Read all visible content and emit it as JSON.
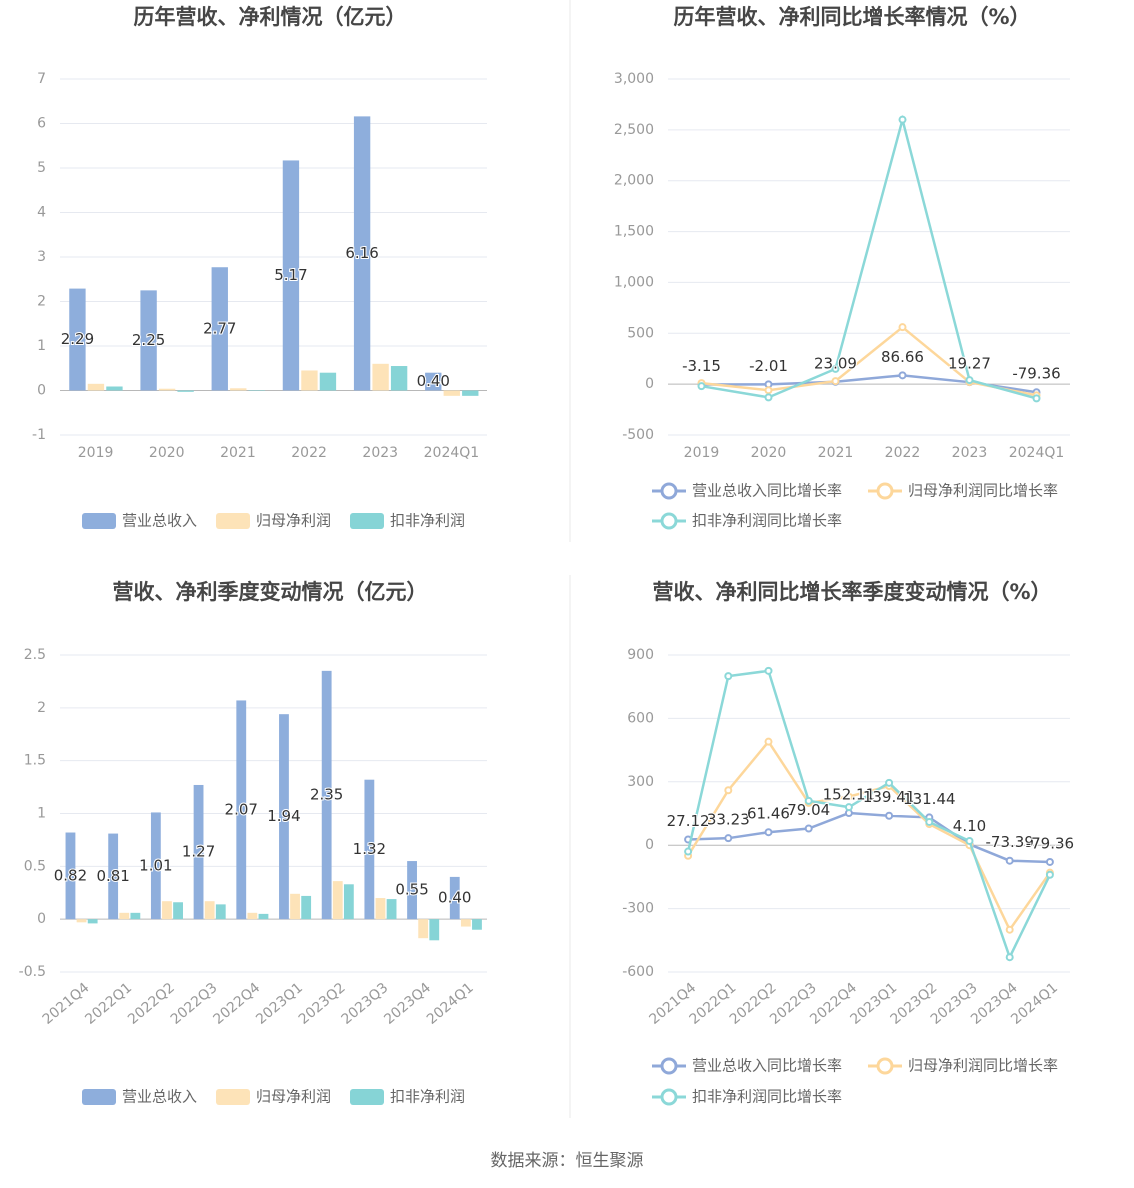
{
  "chart_data": [
    {
      "type": "bar",
      "title": "历年营收、净利情况（亿元）",
      "categories": [
        "2019",
        "2020",
        "2021",
        "2022",
        "2023",
        "2024Q1"
      ],
      "series": [
        {
          "name": "营业总收入",
          "color": "#8eaedc",
          "values": [
            2.29,
            2.25,
            2.77,
            5.17,
            6.16,
            0.4
          ],
          "value_labels": [
            "2.29",
            "2.25",
            "2.77",
            "5.17",
            "6.16",
            "0.40"
          ]
        },
        {
          "name": "归母净利润",
          "color": "#fde3b8",
          "values": [
            0.15,
            0.04,
            0.05,
            0.45,
            0.6,
            -0.12
          ]
        },
        {
          "name": "扣非净利润",
          "color": "#86d4d6",
          "values": [
            0.09,
            -0.03,
            0.01,
            0.4,
            0.55,
            -0.12
          ]
        }
      ],
      "ylim": [
        -1,
        7
      ],
      "yticks": [
        -1,
        0,
        1,
        2,
        3,
        4,
        5,
        6,
        7
      ],
      "grid": true
    },
    {
      "type": "line",
      "title": "历年营收、净利同比增长率情况（%）",
      "categories": [
        "2019",
        "2020",
        "2021",
        "2022",
        "2023",
        "2024Q1"
      ],
      "series": [
        {
          "name": "营业总收入同比增长率",
          "color": "#8fa8d9",
          "values": [
            -3.15,
            -2.01,
            23.09,
            86.66,
            19.27,
            -79.36
          ],
          "value_labels": [
            "-3.15",
            "-2.01",
            "23.09",
            "86.66",
            "19.27",
            "-79.36"
          ]
        },
        {
          "name": "归母净利润同比增长率",
          "color": "#fdd79b",
          "values": [
            10,
            -60,
            30,
            560,
            20,
            -110
          ]
        },
        {
          "name": "扣非净利润同比增长率",
          "color": "#8bd8d8",
          "values": [
            -20,
            -130,
            150,
            2600,
            40,
            -140
          ]
        }
      ],
      "ylim": [
        -500,
        3000
      ],
      "yticks": [
        -500,
        0,
        500,
        {
          "value": 1000,
          "label": "1,000"
        },
        {
          "value": 1500,
          "label": "1,500"
        },
        {
          "value": 2000,
          "label": "2,000"
        },
        {
          "value": 2500,
          "label": "2,500"
        },
        {
          "value": 3000,
          "label": "3,000"
        }
      ],
      "grid": true
    },
    {
      "type": "bar",
      "title": "营收、净利季度变动情况（亿元）",
      "categories": [
        "2021Q4",
        "2022Q1",
        "2022Q2",
        "2022Q3",
        "2022Q4",
        "2023Q1",
        "2023Q2",
        "2023Q3",
        "2023Q4",
        "2024Q1"
      ],
      "series": [
        {
          "name": "营业总收入",
          "color": "#8eaedc",
          "values": [
            0.82,
            0.81,
            1.01,
            1.27,
            2.07,
            1.94,
            2.35,
            1.32,
            0.55,
            0.4
          ],
          "value_labels": [
            "0.82",
            "0.81",
            "1.01",
            "1.27",
            "2.07",
            "1.94",
            "2.35",
            "1.32",
            "0.55",
            "0.40"
          ]
        },
        {
          "name": "归母净利润",
          "color": "#fde3b8",
          "values": [
            -0.03,
            0.06,
            0.17,
            0.17,
            0.06,
            0.24,
            0.36,
            0.2,
            -0.18,
            -0.07
          ]
        },
        {
          "name": "扣非净利润",
          "color": "#86d4d6",
          "values": [
            -0.04,
            0.06,
            0.16,
            0.14,
            0.05,
            0.22,
            0.33,
            0.19,
            -0.2,
            -0.1
          ]
        }
      ],
      "ylim": [
        -0.5,
        2.5
      ],
      "yticks": [
        -0.5,
        0,
        0.5,
        1,
        1.5,
        2,
        2.5
      ],
      "grid": true
    },
    {
      "type": "line",
      "title": "营收、净利同比增长率季度变动情况（%）",
      "categories": [
        "2021Q4",
        "2022Q1",
        "2022Q2",
        "2022Q3",
        "2022Q4",
        "2023Q1",
        "2023Q2",
        "2023Q3",
        "2023Q4",
        "2024Q1"
      ],
      "series": [
        {
          "name": "营业总收入同比增长率",
          "color": "#8fa8d9",
          "values": [
            27.12,
            33.23,
            61.46,
            79.04,
            152.11,
            139.41,
            131.44,
            4.1,
            -73.39,
            -79.36
          ],
          "value_labels": [
            "27.12",
            "33.23",
            "61.46",
            "79.04",
            "152.11",
            "139.41",
            "131.44",
            "4.10",
            "-73.39",
            "-79.36"
          ]
        },
        {
          "name": "归母净利润同比增长率",
          "color": "#fdd79b",
          "values": [
            -50,
            260,
            490,
            200,
            230,
            280,
            100,
            0,
            -400,
            -130
          ]
        },
        {
          "name": "扣非净利润同比增长率",
          "color": "#8bd8d8",
          "values": [
            -30,
            800,
            825,
            210,
            180,
            295,
            110,
            20,
            -530,
            -140
          ]
        }
      ],
      "ylim": [
        -600,
        900
      ],
      "yticks": [
        -600,
        -300,
        0,
        300,
        600,
        900
      ],
      "grid": true
    }
  ],
  "source": "数据来源：恒生聚源"
}
